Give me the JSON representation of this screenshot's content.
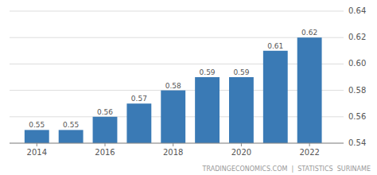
{
  "chart_data": {
    "type": "bar",
    "x": [
      2014,
      2015,
      2016,
      2017,
      2018,
      2019,
      2020,
      2021,
      2022
    ],
    "values": [
      0.55,
      0.55,
      0.56,
      0.57,
      0.58,
      0.59,
      0.59,
      0.61,
      0.62
    ],
    "color": "#3a7ab5",
    "xlim": [
      2013.2,
      2023.0
    ],
    "xticks": [
      2014,
      2016,
      2018,
      2020,
      2022
    ],
    "ylim": [
      0.54,
      0.64
    ],
    "yticks": [
      0.54,
      0.56,
      0.58,
      {
        "value": 0.6,
        "label": "0.60"
      },
      0.62,
      0.64
    ],
    "grid": true,
    "data_labels": true,
    "annotations": [
      "TRADINGECONOMICS.COM  |  STATISTICS  SURINAME"
    ]
  }
}
